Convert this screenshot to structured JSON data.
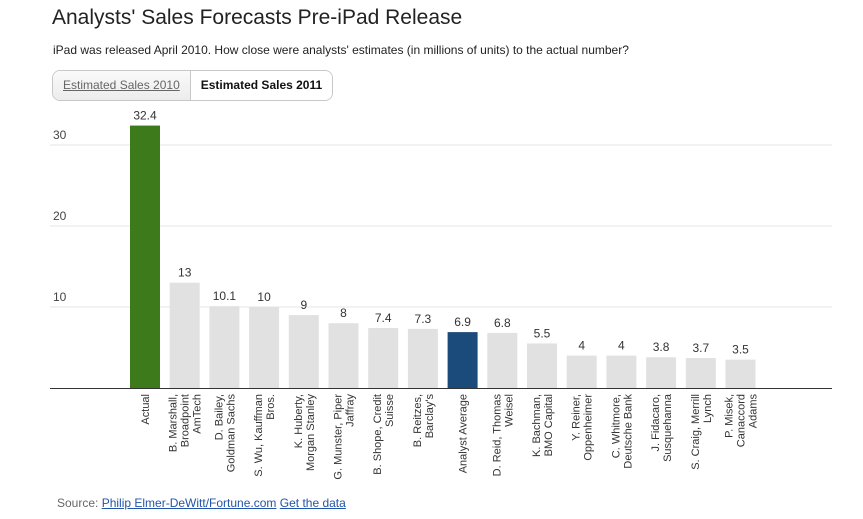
{
  "header": {
    "title": "Analysts' Sales Forecasts Pre-iPad Release",
    "subtitle": "iPad was released April 2010. How close were analysts' estimates (in millions of units) to the actual number?"
  },
  "tabs": [
    {
      "label": "Estimated Sales 2010",
      "active": false
    },
    {
      "label": "Estimated Sales 2011",
      "active": true
    }
  ],
  "source": {
    "prefix": "Source: ",
    "link_label": "Philip Elmer-DeWitt/Fortune.com",
    "data_link_label": "Get the data"
  },
  "chart_data": {
    "type": "bar",
    "ylim": [
      0,
      35
    ],
    "yticks": [
      10,
      20,
      30
    ],
    "grid": true,
    "colors": {
      "default": "#e1e1e1",
      "actual": "#3d7a1b",
      "average": "#1b4b7a",
      "axis": "#333333",
      "grid": "#e6e6e6"
    },
    "bars": [
      {
        "label": [
          "Actual"
        ],
        "value": 32.4,
        "display": "32.4",
        "color": "actual"
      },
      {
        "label": [
          "B. Marshall,",
          "Broadpoint",
          "AmTech"
        ],
        "value": 13,
        "display": "13"
      },
      {
        "label": [
          "D. Bailey,",
          "Goldman Sachs"
        ],
        "value": 10.1,
        "display": "10.1"
      },
      {
        "label": [
          "S. Wu, Kauffman",
          "Bros."
        ],
        "value": 10,
        "display": "10"
      },
      {
        "label": [
          "K. Huberty,",
          "Morgan Stanley"
        ],
        "value": 9,
        "display": "9"
      },
      {
        "label": [
          "G. Munster, Piper",
          "Jaffray"
        ],
        "value": 8,
        "display": "8"
      },
      {
        "label": [
          "B. Shope, Credit",
          "Suisse"
        ],
        "value": 7.4,
        "display": "7.4"
      },
      {
        "label": [
          "B. Reitzes,",
          "Barclay's"
        ],
        "value": 7.3,
        "display": "7.3"
      },
      {
        "label": [
          "Analyst Average"
        ],
        "value": 6.9,
        "display": "6.9",
        "color": "average"
      },
      {
        "label": [
          "D. Reid, Thomas",
          "Weisel"
        ],
        "value": 6.8,
        "display": "6.8"
      },
      {
        "label": [
          "K. Bachman,",
          "BMO Capital"
        ],
        "value": 5.5,
        "display": "5.5"
      },
      {
        "label": [
          "Y. Reiner,",
          "Oppenheimer"
        ],
        "value": 4,
        "display": "4"
      },
      {
        "label": [
          "C. Whitmore,",
          "Deutsche Bank"
        ],
        "value": 4,
        "display": "4"
      },
      {
        "label": [
          "J. Fidacaro,",
          "Susquehanna"
        ],
        "value": 3.8,
        "display": "3.8"
      },
      {
        "label": [
          "S. Craig, Merrill",
          "Lynch"
        ],
        "value": 3.7,
        "display": "3.7"
      },
      {
        "label": [
          "P. Misek,",
          "Canaccord",
          "Adams"
        ],
        "value": 3.5,
        "display": "3.5"
      }
    ]
  }
}
